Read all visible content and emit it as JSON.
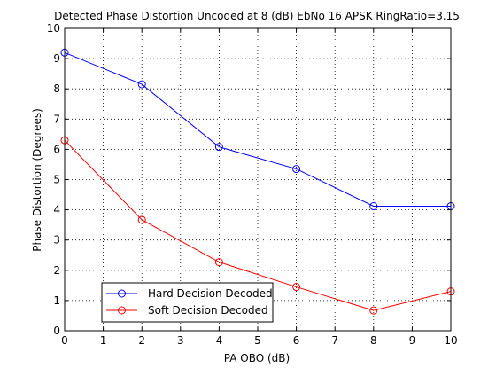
{
  "chart_data": {
    "type": "line",
    "title": "Detected Phase Distortion Uncoded at 8 (dB) EbNo 16 APSK RingRatio=3.15",
    "xlabel": "PA OBO (dB)",
    "ylabel": "Phase Distortion (Degrees)",
    "xlim": [
      0,
      10
    ],
    "ylim": [
      0,
      10
    ],
    "xticks": [
      "0",
      "1",
      "2",
      "3",
      "4",
      "5",
      "6",
      "7",
      "8",
      "9",
      "10"
    ],
    "yticks": [
      "0",
      "1",
      "2",
      "3",
      "4",
      "5",
      "6",
      "7",
      "8",
      "9",
      "10"
    ],
    "grid": true,
    "legend_position": "bottom-left",
    "x": [
      0,
      2,
      4,
      6,
      8,
      10
    ],
    "series": [
      {
        "name": "Hard Decision Decoded",
        "color": "#0000ff",
        "marker": "circle",
        "values": [
          9.2,
          8.15,
          6.08,
          5.35,
          4.12,
          4.12
        ]
      },
      {
        "name": "Soft Decision Decoded",
        "color": "#ff0000",
        "marker": "circle",
        "values": [
          6.3,
          3.67,
          2.27,
          1.45,
          0.67,
          1.3
        ]
      }
    ]
  }
}
